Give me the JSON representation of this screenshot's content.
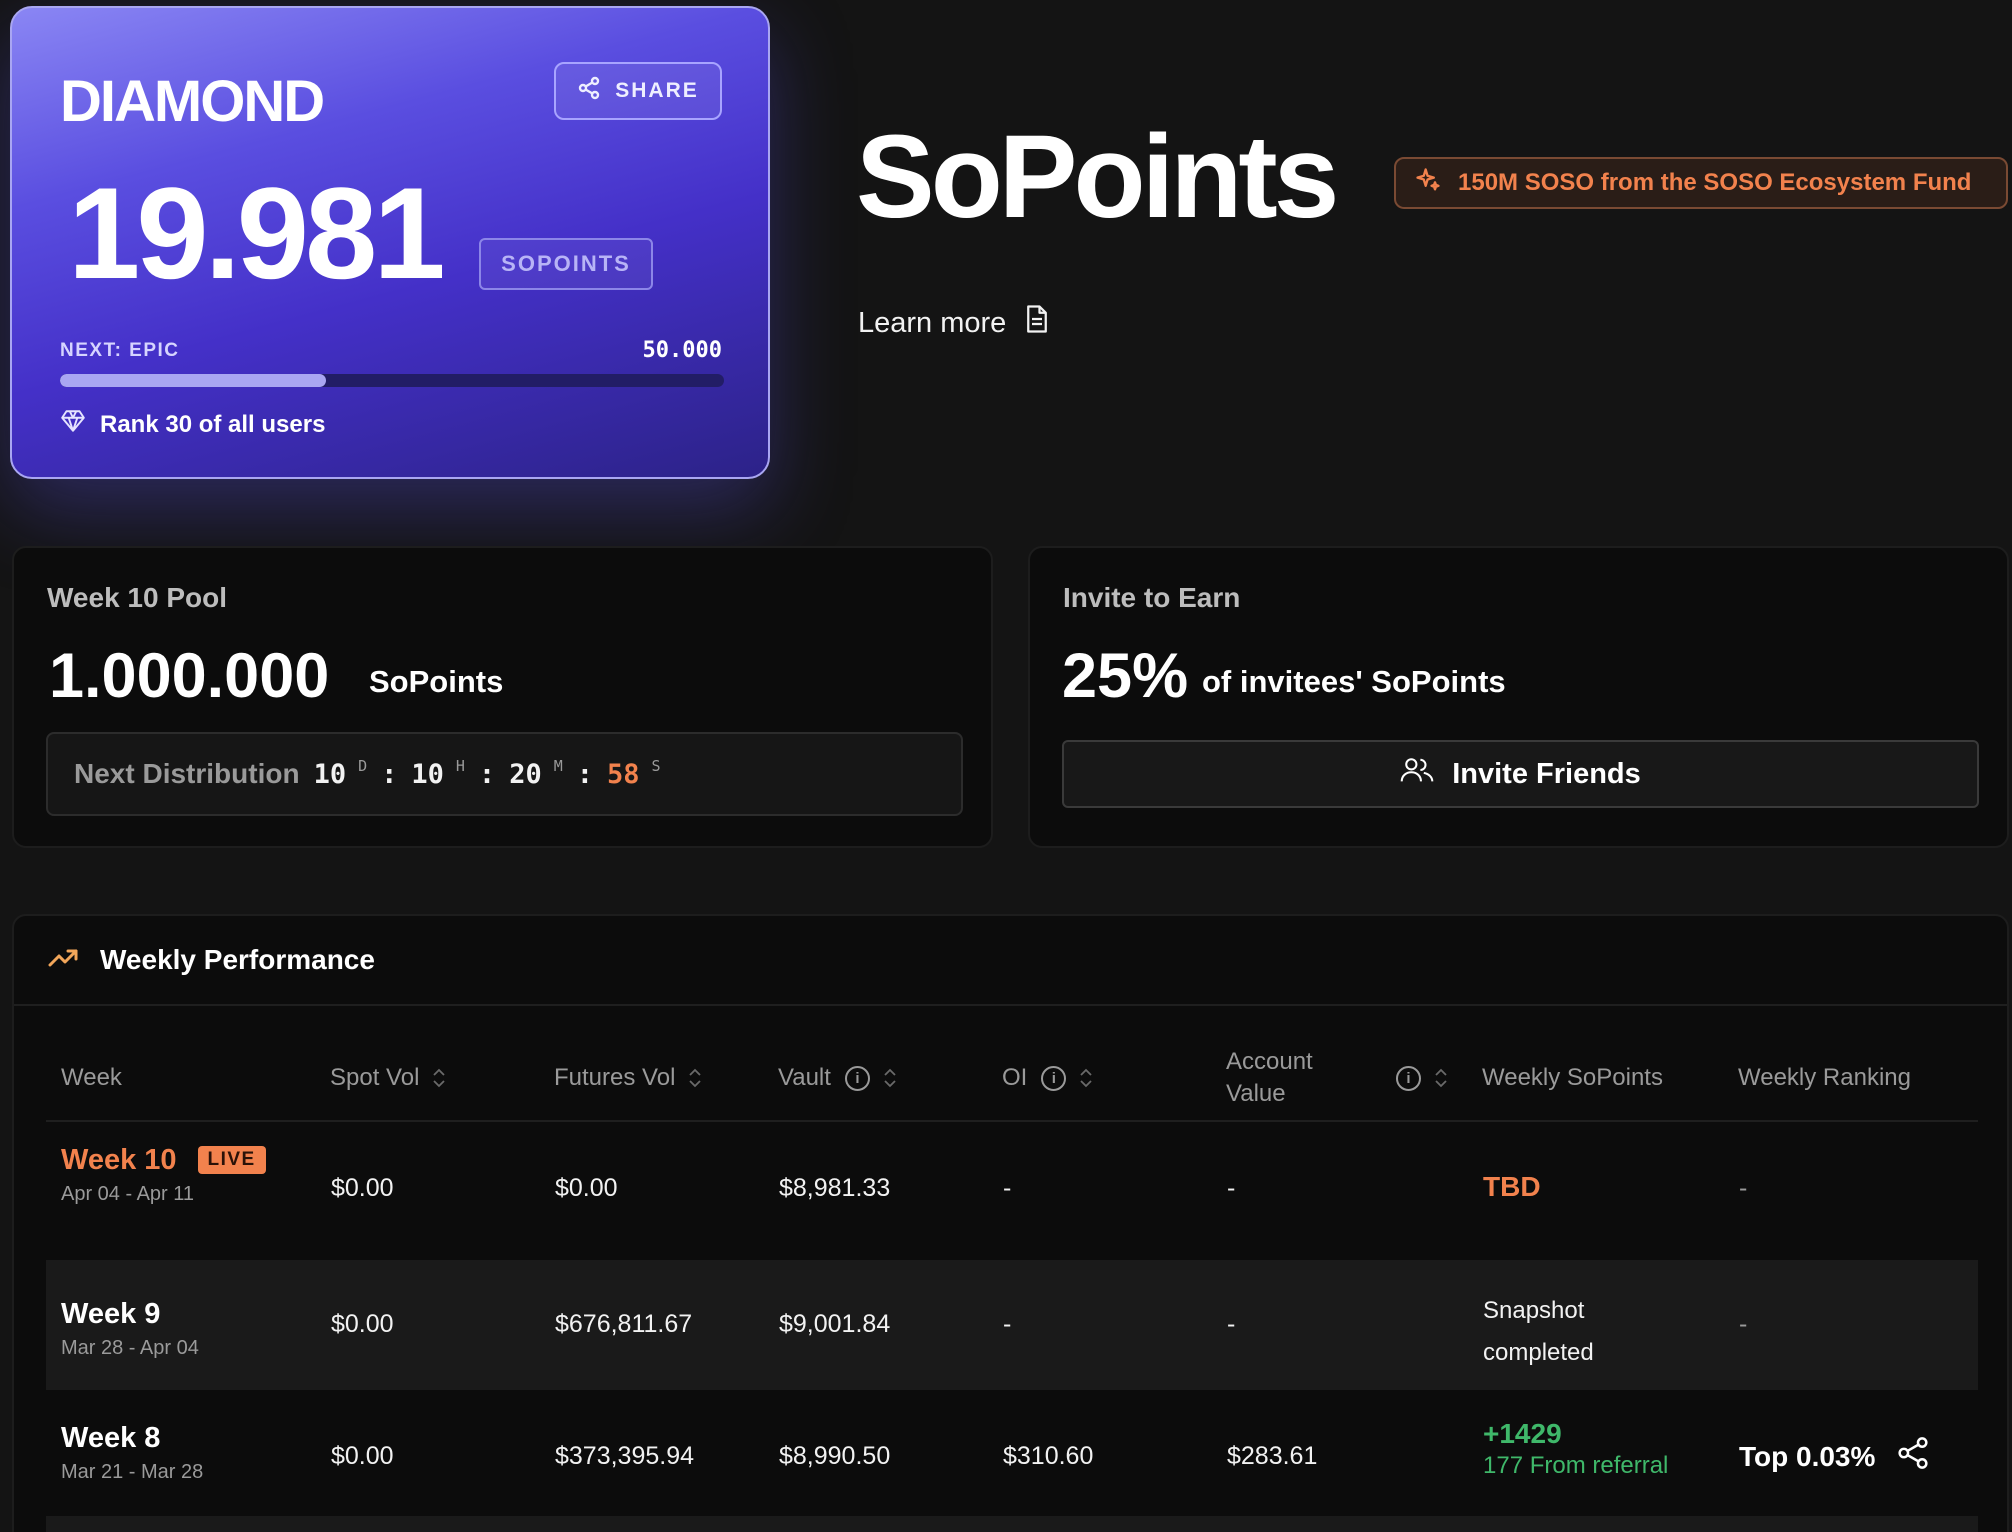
{
  "tier_card": {
    "tier": "DIAMOND",
    "share_label": "SHARE",
    "points": "19.981",
    "points_unit": "SOPOINTS",
    "next_label": "NEXT: EPIC",
    "next_target": "50.000",
    "progress_fraction": 0.4,
    "rank_text": "Rank 30 of all users"
  },
  "header": {
    "title": "SoPoints",
    "fund_badge": "150M SOSO from the SOSO Ecosystem Fund",
    "learn_more": "Learn more"
  },
  "pool": {
    "title": "Week 10 Pool",
    "amount": "1.000.000",
    "unit": "SoPoints",
    "next_distribution_label": "Next Distribution",
    "countdown": {
      "days": "10",
      "days_unit": "D",
      "hours": "10",
      "hours_unit": "H",
      "minutes": "20",
      "minutes_unit": "M",
      "seconds": "58",
      "seconds_unit": "S"
    }
  },
  "invite": {
    "title": "Invite to Earn",
    "percent": "25%",
    "description": "of invitees' SoPoints",
    "button_label": "Invite Friends"
  },
  "performance": {
    "title": "Weekly Performance",
    "columns": {
      "week": "Week",
      "spot_vol": "Spot Vol",
      "futures_vol": "Futures Vol",
      "vault": "Vault",
      "oi": "OI",
      "account_value_1": "Account",
      "account_value_2": "Value",
      "weekly_sopoints": "Weekly SoPoints",
      "weekly_ranking": "Weekly Ranking"
    },
    "rows": [
      {
        "week": "Week 10",
        "badge": "LIVE",
        "range": "Apr 04 - Apr 11",
        "spot_vol": "$0.00",
        "futures_vol": "$0.00",
        "vault": "$8,981.33",
        "oi": "-",
        "account_value": "-",
        "sopoints": "TBD",
        "ranking": "-"
      },
      {
        "week": "Week 9",
        "range": "Mar 28 - Apr 04",
        "spot_vol": "$0.00",
        "futures_vol": "$676,811.67",
        "vault": "$9,001.84",
        "oi": "-",
        "account_value": "-",
        "sopoints_1": "Snapshot",
        "sopoints_2": "completed",
        "ranking": "-"
      },
      {
        "week": "Week 8",
        "range": "Mar 21 - Mar 28",
        "spot_vol": "$0.00",
        "futures_vol": "$373,395.94",
        "vault": "$8,990.50",
        "oi": "$310.60",
        "account_value": "$283.61",
        "sopoints": "+1429",
        "referral": "177 From referral",
        "ranking": "Top 0.03%"
      }
    ]
  },
  "colors": {
    "accent_orange": "#f2824d",
    "positive_green": "#3fb86a",
    "card_purple": "#4430c8"
  },
  "icons": [
    "share-icon",
    "diamond-icon",
    "sparkle-icon",
    "document-icon",
    "users-icon",
    "trending-up-icon",
    "sort-icon",
    "info-icon"
  ]
}
